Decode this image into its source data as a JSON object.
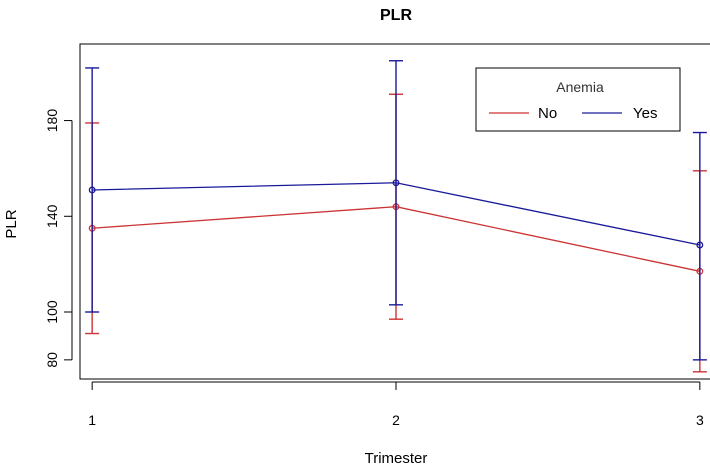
{
  "chart_data": {
    "type": "line",
    "title": "PLR",
    "xlabel": "Trimester",
    "ylabel": "PLR",
    "x": [
      1,
      2,
      3
    ],
    "x_ticks": [
      "1",
      "2",
      "3"
    ],
    "y_ticks": [
      80,
      100,
      140,
      180
    ],
    "xlim": [
      0.96,
      3.04
    ],
    "ylim": [
      72,
      212
    ],
    "grid": false,
    "legend": {
      "title": "Anemia",
      "placement": "top-right"
    },
    "series": [
      {
        "name": "No",
        "color": "#cc3333",
        "values": [
          135,
          144,
          117
        ],
        "lower": [
          91,
          97,
          75
        ],
        "upper": [
          179,
          191,
          159
        ]
      },
      {
        "name": "Yes",
        "color": "#1a1a99",
        "values": [
          151,
          154,
          128
        ],
        "lower": [
          100,
          103,
          80
        ],
        "upper": [
          202,
          205,
          175
        ]
      }
    ]
  }
}
